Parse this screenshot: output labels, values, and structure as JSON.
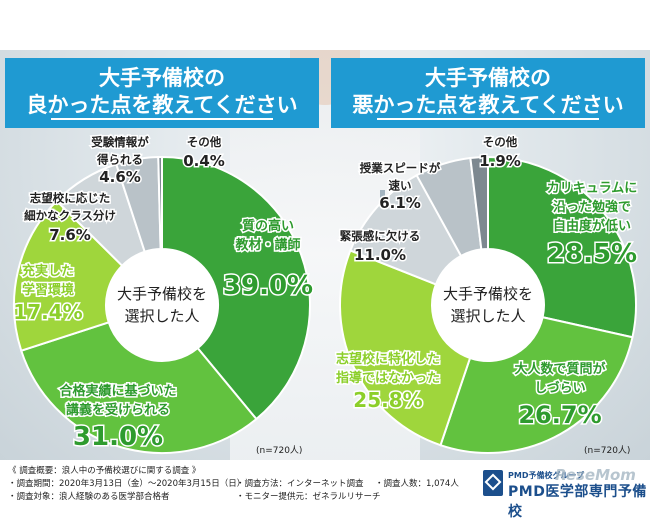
{
  "header_left": {
    "line1": "大手予備校の",
    "line2": "良かった点を教えてください"
  },
  "header_right": {
    "line1": "大手予備校の",
    "line2": "悪かった点を教えてください"
  },
  "chart_data": [
    {
      "type": "pie",
      "center_label": [
        "大手予備校を",
        "選択した人"
      ],
      "note": "(n=720人)",
      "slices": [
        {
          "name": "質の高い教材・講師",
          "label_lines": [
            "質の高い",
            "教材・講師"
          ],
          "value": 39.0,
          "value_text": "39.0%",
          "color": "#3aa43a",
          "text_color": "#2e9b2e"
        },
        {
          "name": "合格実績に基づいた講義を受けられる",
          "label_lines": [
            "合格実績に基づいた",
            "講義を受けられる"
          ],
          "value": 31.0,
          "value_text": "31.0%",
          "color": "#62c23f",
          "text_color": "#2e9b2e"
        },
        {
          "name": "充実した学習環境",
          "label_lines": [
            "充実した",
            "学習環境"
          ],
          "value": 17.4,
          "value_text": "17.4%",
          "color": "#9fd63c",
          "text_color": "#8ccf2a"
        },
        {
          "name": "志望校に応じた細かなクラス分け",
          "label_lines": [
            "志望校に応じた",
            "細かなクラス分け"
          ],
          "value": 7.6,
          "value_text": "7.6%",
          "color": "#cfd6da",
          "text_color": "#222222"
        },
        {
          "name": "受験情報が得られる",
          "label_lines": [
            "受験情報が",
            "得られる"
          ],
          "value": 4.6,
          "value_text": "4.6%",
          "color": "#b9c2c8",
          "text_color": "#222222"
        },
        {
          "name": "その他",
          "label_lines": [
            "その他"
          ],
          "value": 0.4,
          "value_text": "0.4%",
          "color": "#7d8890",
          "text_color": "#222222"
        }
      ]
    },
    {
      "type": "pie",
      "center_label": [
        "大手予備校を",
        "選択した人"
      ],
      "note": "(n=720人)",
      "slices": [
        {
          "name": "カリキュラムに沿った勉強で自由度が低い",
          "label_lines": [
            "カリキュラムに",
            "沿った勉強で",
            "自由度が低い"
          ],
          "value": 28.5,
          "value_text": "28.5%",
          "color": "#3aa43a",
          "text_color": "#2e9b2e"
        },
        {
          "name": "大人数で質問がしづらい",
          "label_lines": [
            "大人数で質問が",
            "しづらい"
          ],
          "value": 26.7,
          "value_text": "26.7%",
          "color": "#62c23f",
          "text_color": "#2e9b2e"
        },
        {
          "name": "志望校に特化した指導ではなかった",
          "label_lines": [
            "志望校に特化した",
            "指導ではなかった"
          ],
          "value": 25.8,
          "value_text": "25.8%",
          "color": "#9fd63c",
          "text_color": "#8ccf2a"
        },
        {
          "name": "緊張感に欠ける",
          "label_lines": [
            "緊張感に欠ける"
          ],
          "value": 11.0,
          "value_text": "11.0%",
          "color": "#cfd6da",
          "text_color": "#222222"
        },
        {
          "name": "授業スピードが速い",
          "label_lines": [
            "授業スピードが",
            "速い"
          ],
          "value": 6.1,
          "value_text": "6.1%",
          "color": "#b9c2c8",
          "text_color": "#222222"
        },
        {
          "name": "その他",
          "label_lines": [
            "その他"
          ],
          "value": 1.9,
          "value_text": "1.9%",
          "color": "#7d8890",
          "text_color": "#222222"
        }
      ]
    }
  ],
  "footer": {
    "title": "《 調査概要：浪人中の予備校選びに関する調査 》",
    "period": "・調査期間：2020年3月13日（金）〜2020年3月15日（日）",
    "method": "・調査方法：インターネット調査",
    "count": "・調査人数：1,074人",
    "target": "・調査対象：浪人経験のある医学部合格者",
    "provider": "・モニター提供元：ゼネラルリサーチ"
  },
  "logo": {
    "small": "PMD予備校グループ",
    "big": "PMD医学部専門予備校",
    "watermark": "ReseMom"
  }
}
